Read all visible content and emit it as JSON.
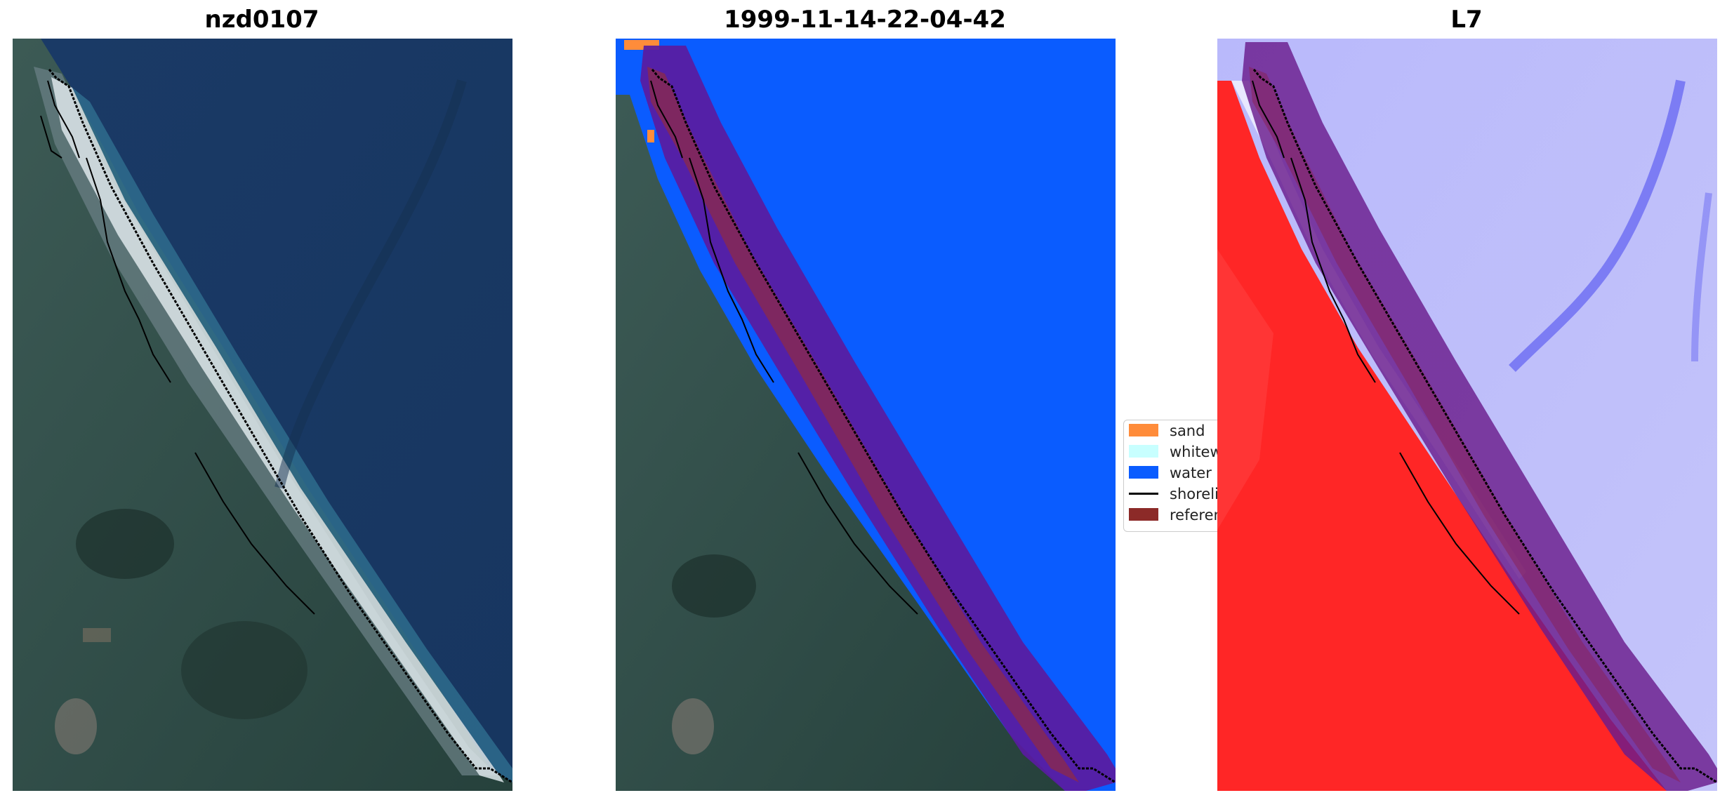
{
  "panels": {
    "left": {
      "title": "nzd0107"
    },
    "middle": {
      "title": "1999-11-14-22-04-42"
    },
    "right": {
      "title": "L7"
    }
  },
  "legend": {
    "items": [
      {
        "label": "sand",
        "color": "#ff8c3a",
        "kind": "patch"
      },
      {
        "label": "whitewater",
        "color": "#c8ffff",
        "kind": "patch"
      },
      {
        "label": "water",
        "color": "#0a5cff",
        "kind": "patch"
      },
      {
        "label": "shoreline",
        "color": "#000000",
        "kind": "line"
      },
      {
        "label": "reference",
        "color": "#8c2a28",
        "kind": "patch"
      }
    ]
  },
  "colors": {
    "land": "#2c4b45",
    "ocean": "#193a64",
    "surf": "#dfe7ea",
    "water_class": "#0a5cff",
    "reference_buffer": "#5a1ca0",
    "index_land": "#ff2020",
    "index_water": "#b8b8f8"
  }
}
